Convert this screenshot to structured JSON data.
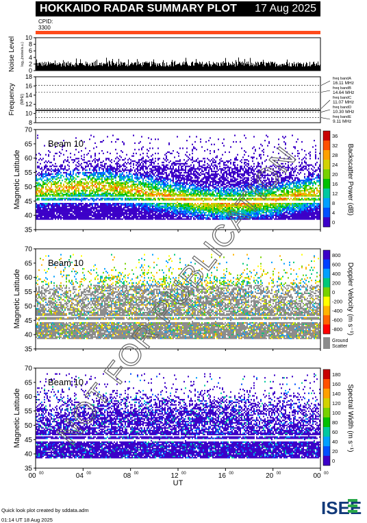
{
  "header": {
    "title": "HOKKAIDO RADAR SUMMARY PLOT",
    "date": "17 Aug 2025"
  },
  "cpid": {
    "label": "CPID:",
    "value": "3300",
    "bar_color": "#ff4a1a"
  },
  "footer": {
    "credit": "Quick look plot created by sddata.adm",
    "timestamp": "01:14 UT 18 Aug 2025",
    "logo_text": "ISEE"
  },
  "watermark": "NOT FOR PUBLICATION",
  "chart_data": [
    {
      "type": "bar",
      "panel": "noise",
      "ylabel": "Noise Level",
      "ylabel_sub": "log₁₀(noise/a.u.)",
      "ylim": [
        0,
        10
      ],
      "yticks": [
        "0",
        "2",
        "4",
        "6",
        "8",
        "10"
      ],
      "x": "hours 0-24",
      "values_note": "noise trace mostly between 1 and 3"
    },
    {
      "type": "line",
      "panel": "frequency",
      "ylabel": "Frequency",
      "ylabel_sub": "(MHz)",
      "ylim": [
        8,
        18
      ],
      "yticks": [
        "8",
        "10",
        "12",
        "14",
        "16",
        "18"
      ],
      "bands": [
        {
          "name": "freq bandA",
          "value": "16.11 MHz",
          "mhz": 16.11
        },
        {
          "name": "freq bandB",
          "value": "14.64 MHz",
          "mhz": 14.64
        },
        {
          "name": "freq bandC",
          "value": "11.07 MHz",
          "mhz": 11.07
        },
        {
          "name": "freq bandD",
          "value": "10.30 MHz",
          "mhz": 10.3
        },
        {
          "name": "freq bandE",
          "value": "9.11 MHz",
          "mhz": 9.11
        }
      ]
    },
    {
      "type": "heatmap",
      "panel": "power",
      "label": "Beam 10",
      "ylabel": "Magnetic Latitude",
      "ylim": [
        35,
        70
      ],
      "yticks": [
        "35",
        "40",
        "45",
        "50",
        "55",
        "60",
        "65",
        "70"
      ],
      "colorbar_label": "Backscatter Power (dB)",
      "colorbar_ticks": [
        "0",
        "4",
        "8",
        "12",
        "16",
        "20",
        "24",
        "28",
        "32",
        "36"
      ]
    },
    {
      "type": "heatmap",
      "panel": "velocity",
      "label": "Beam 10",
      "ylabel": "Magnetic Latitude",
      "ylim": [
        35,
        70
      ],
      "yticks": [
        "35",
        "40",
        "45",
        "50",
        "55",
        "60",
        "65",
        "70"
      ],
      "colorbar_label": "Doppler Velocity (m s⁻¹)",
      "colorbar_ticks": [
        "800",
        "600",
        "400",
        "200",
        "0",
        "-200",
        "-400",
        "-600",
        "-800"
      ],
      "ground_label": "Ground",
      "ground_label2": "Scatter"
    },
    {
      "type": "heatmap",
      "panel": "width",
      "label": "Beam 10",
      "ylabel": "Magnetic Latitude",
      "ylim": [
        35,
        70
      ],
      "yticks": [
        "35",
        "40",
        "45",
        "50",
        "55",
        "60",
        "65",
        "70"
      ],
      "colorbar_label": "Spectral Width (m s⁻¹)",
      "colorbar_ticks": [
        "0",
        "20",
        "40",
        "60",
        "80",
        "100",
        "120",
        "140",
        "160",
        "180"
      ],
      "xlabel": "UT",
      "xticks": [
        {
          "h": "00",
          "m": "00"
        },
        {
          "h": "04",
          "m": "00"
        },
        {
          "h": "08",
          "m": "00"
        },
        {
          "h": "12",
          "m": "00"
        },
        {
          "h": "16",
          "m": "00"
        },
        {
          "h": "20",
          "m": "00"
        },
        {
          "h": "00",
          "m": "00"
        }
      ]
    }
  ]
}
